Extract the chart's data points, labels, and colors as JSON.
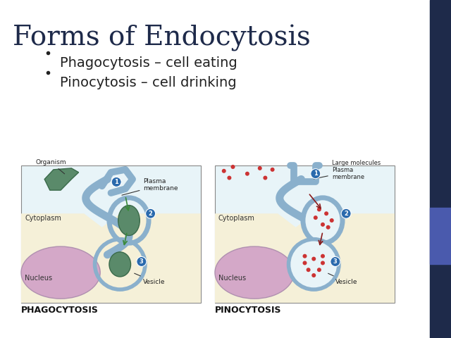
{
  "title": "Forms of Endocytosis",
  "bullets": [
    "Phagocytosis – cell eating",
    "Pinocytosis – cell drinking"
  ],
  "label_phago": "PHAGOCYTOSIS",
  "label_pino": "PINOCYTOSIS",
  "bg_color": "#f0f0f0",
  "slide_bg": "#ffffff",
  "sidebar_color": "#1e2a4a",
  "sidebar2_color": "#4a5aad",
  "title_color": "#1e2a4a",
  "bullet_color": "#222222",
  "title_fontsize": 28,
  "bullet_fontsize": 14,
  "label_fontsize": 10,
  "cell_bg": "#e8f4f8",
  "cytoplasm_color": "#f5f0d8",
  "nucleus_color": "#d4a8c8",
  "membrane_color": "#8ab0cc",
  "organism_color": "#5a8a6a",
  "vesicle_border": "#8ab0cc",
  "step_circle_color": "#2a6aad",
  "arrow_color_phago": "#3a8a3a",
  "arrow_color_pino": "#8a1a1a",
  "dot_color": "#cc3333"
}
